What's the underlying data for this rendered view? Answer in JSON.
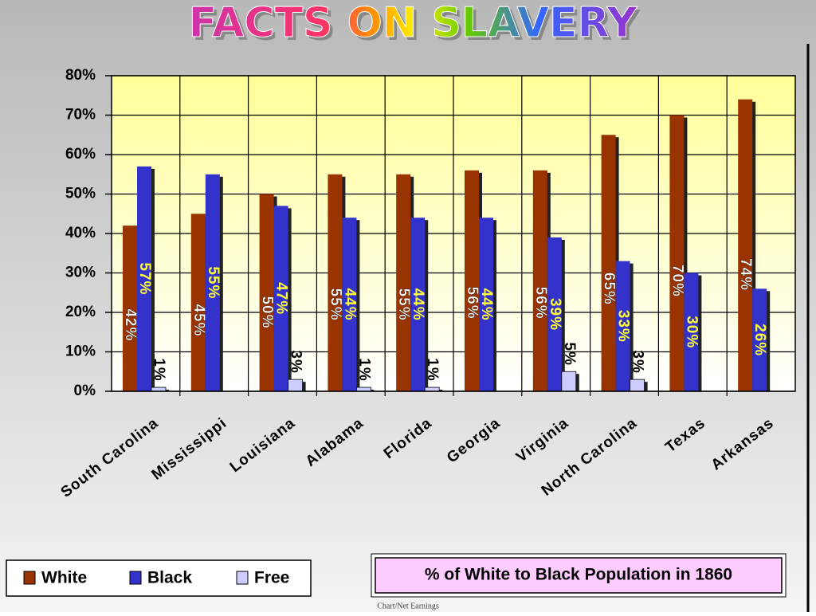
{
  "chart_data": {
    "type": "bar",
    "title": "FACTS ON SLAVERY",
    "caption": "% of White to Black Population in 1860",
    "footnote": "Chart/Net Earnings",
    "categories": [
      "South Carolina",
      "Mississippi",
      "Louisiana",
      "Alabama",
      "Florida",
      "Georgia",
      "Virginia",
      "North Carolina",
      "Texas",
      "Arkansas"
    ],
    "series": [
      {
        "name": "White",
        "color": "#993300",
        "values": [
          42,
          45,
          50,
          55,
          55,
          56,
          56,
          65,
          70,
          74
        ],
        "value_labels": [
          "42%",
          "45%",
          "50%",
          "55%",
          "55%",
          "56%",
          "56%",
          "65%",
          "70%",
          "74%"
        ]
      },
      {
        "name": "Black",
        "color": "#3333cc",
        "values": [
          57,
          55,
          47,
          44,
          44,
          44,
          39,
          33,
          30,
          26
        ],
        "value_labels": [
          "57%",
          "55%",
          "47%",
          "44%",
          "44%",
          "44%",
          "39%",
          "33%",
          "30%",
          "26%"
        ]
      },
      {
        "name": "Free",
        "color": "#ccccff",
        "values": [
          1,
          null,
          3,
          1,
          1,
          null,
          5,
          3,
          null,
          null
        ],
        "value_labels": [
          "1%",
          null,
          "3%",
          "1%",
          "1%",
          null,
          "5%",
          "3%",
          null,
          null
        ]
      }
    ],
    "ylim": [
      0,
      80
    ],
    "yticks": [
      {
        "value": 0,
        "label": "0%"
      },
      {
        "value": 10,
        "label": "10%"
      },
      {
        "value": 20,
        "label": "20%"
      },
      {
        "value": 30,
        "label": "30%"
      },
      {
        "value": 40,
        "label": "40%"
      },
      {
        "value": 50,
        "label": "50%"
      },
      {
        "value": 60,
        "label": "60%"
      },
      {
        "value": 70,
        "label": "70%"
      },
      {
        "value": 80,
        "label": "80%"
      }
    ],
    "grid": true
  }
}
